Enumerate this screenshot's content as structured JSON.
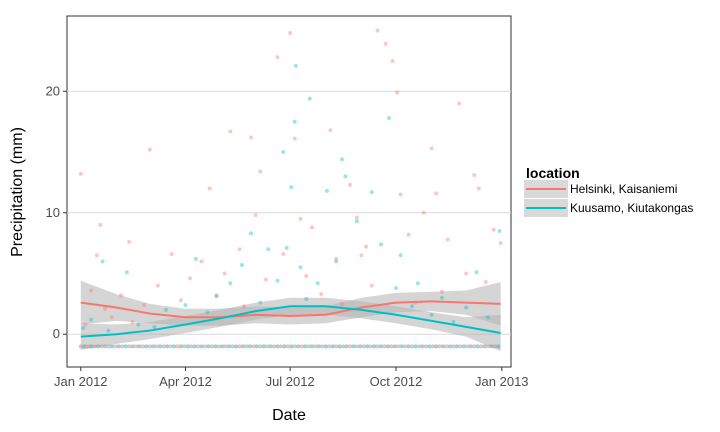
{
  "chart_data": {
    "type": "scatter",
    "xlabel": "Date",
    "ylabel": "Precipitation (mm)",
    "x_ticks": [
      "Jan 2012",
      "Apr 2012",
      "Jul 2012",
      "Oct 2012",
      "Jan 2013"
    ],
    "x_range": [
      "2011-12-20",
      "2013-01-09"
    ],
    "y_ticks": [
      0,
      10,
      20
    ],
    "y_range": [
      -2.7,
      26.2
    ],
    "grid": true,
    "legend": {
      "title": "location",
      "placement": "right",
      "entries": [
        "Helsinki, Kaisaniemi",
        "Kuusamo, Kiutakongas"
      ]
    },
    "colors": {
      "helsinki": "#F8766D",
      "kuusamo": "#00BFC4",
      "ribbon": "#b3b3b3"
    },
    "series": [
      {
        "name": "Helsinki, Kaisaniemi",
        "color": "#F8766D",
        "smooth_x": [
          "2012-01-01",
          "2012-02-01",
          "2012-03-01",
          "2012-04-01",
          "2012-05-01",
          "2012-06-01",
          "2012-07-01",
          "2012-08-01",
          "2012-09-01",
          "2012-10-01",
          "2012-11-01",
          "2012-12-01",
          "2012-12-31"
        ],
        "smooth_y": [
          2.6,
          2.2,
          1.7,
          1.4,
          1.4,
          1.6,
          1.5,
          1.6,
          2.2,
          2.6,
          2.7,
          2.6,
          2.5
        ],
        "smooth_lo": [
          0.8,
          1.1,
          0.9,
          0.7,
          0.7,
          0.9,
          0.8,
          0.9,
          1.4,
          1.8,
          1.9,
          1.6,
          0.7
        ],
        "smooth_hi": [
          4.4,
          3.3,
          2.5,
          2.1,
          2.1,
          2.3,
          2.2,
          2.3,
          3.0,
          3.4,
          3.5,
          3.6,
          4.3
        ],
        "points": [
          [
            "2012-01-01",
            13.2
          ],
          [
            "2012-01-05",
            0.8
          ],
          [
            "2012-01-10",
            3.6
          ],
          [
            "2012-01-15",
            6.5
          ],
          [
            "2012-01-18",
            9.0
          ],
          [
            "2012-01-22",
            2.1
          ],
          [
            "2012-01-28",
            1.4
          ],
          [
            "2012-02-05",
            3.2
          ],
          [
            "2012-02-12",
            7.6
          ],
          [
            "2012-02-15",
            1.0
          ],
          [
            "2012-02-25",
            2.4
          ],
          [
            "2012-03-01",
            15.2
          ],
          [
            "2012-03-08",
            4.0
          ],
          [
            "2012-03-20",
            6.6
          ],
          [
            "2012-03-28",
            2.8
          ],
          [
            "2012-04-05",
            4.6
          ],
          [
            "2012-04-15",
            6.0
          ],
          [
            "2012-04-22",
            12.0
          ],
          [
            "2012-04-28",
            3.1
          ],
          [
            "2012-05-05",
            5.0
          ],
          [
            "2012-05-10",
            16.7
          ],
          [
            "2012-05-18",
            7.0
          ],
          [
            "2012-05-22",
            2.3
          ],
          [
            "2012-05-28",
            16.2
          ],
          [
            "2012-06-01",
            9.8
          ],
          [
            "2012-06-05",
            13.4
          ],
          [
            "2012-06-10",
            4.5
          ],
          [
            "2012-06-20",
            22.8
          ],
          [
            "2012-06-25",
            6.6
          ],
          [
            "2012-07-01",
            24.8
          ],
          [
            "2012-07-05",
            16.1
          ],
          [
            "2012-07-10",
            9.5
          ],
          [
            "2012-07-15",
            4.8
          ],
          [
            "2012-07-20",
            8.8
          ],
          [
            "2012-07-28",
            3.3
          ],
          [
            "2012-08-05",
            16.8
          ],
          [
            "2012-08-10",
            6.2
          ],
          [
            "2012-08-15",
            2.5
          ],
          [
            "2012-08-22",
            12.3
          ],
          [
            "2012-08-28",
            9.6
          ],
          [
            "2012-09-01",
            6.5
          ],
          [
            "2012-09-05",
            7.2
          ],
          [
            "2012-09-10",
            4.0
          ],
          [
            "2012-09-15",
            25.0
          ],
          [
            "2012-09-22",
            23.9
          ],
          [
            "2012-09-28",
            22.5
          ],
          [
            "2012-10-02",
            19.9
          ],
          [
            "2012-10-05",
            11.5
          ],
          [
            "2012-10-12",
            8.2
          ],
          [
            "2012-10-18",
            2.6
          ],
          [
            "2012-10-25",
            10.0
          ],
          [
            "2012-11-01",
            15.3
          ],
          [
            "2012-11-05",
            11.6
          ],
          [
            "2012-11-10",
            3.5
          ],
          [
            "2012-11-15",
            7.8
          ],
          [
            "2012-11-25",
            19.0
          ],
          [
            "2012-12-01",
            5.0
          ],
          [
            "2012-12-08",
            13.1
          ],
          [
            "2012-12-12",
            12.0
          ],
          [
            "2012-12-18",
            4.3
          ],
          [
            "2012-12-25",
            8.6
          ],
          [
            "2012-12-31",
            7.5
          ]
        ]
      },
      {
        "name": "Kuusamo, Kiutakongas",
        "color": "#00BFC4",
        "smooth_x": [
          "2012-01-01",
          "2012-02-01",
          "2012-03-01",
          "2012-04-01",
          "2012-05-01",
          "2012-06-01",
          "2012-07-01",
          "2012-08-01",
          "2012-09-01",
          "2012-10-01",
          "2012-11-01",
          "2012-12-01",
          "2012-12-31"
        ],
        "smooth_y": [
          -0.2,
          0.0,
          0.3,
          0.8,
          1.3,
          1.9,
          2.3,
          2.3,
          2.0,
          1.6,
          1.1,
          0.6,
          0.1
        ],
        "smooth_lo": [
          -1.3,
          -0.8,
          -0.4,
          0.1,
          0.6,
          1.2,
          1.6,
          1.6,
          1.3,
          0.9,
          0.4,
          -0.2,
          -1.4
        ],
        "smooth_hi": [
          0.9,
          0.8,
          1.0,
          1.5,
          2.0,
          2.6,
          3.0,
          3.0,
          2.7,
          2.3,
          1.8,
          1.4,
          1.6
        ],
        "points": [
          [
            "2012-01-03",
            0.5
          ],
          [
            "2012-01-10",
            1.2
          ],
          [
            "2012-01-20",
            6.0
          ],
          [
            "2012-01-25",
            0.3
          ],
          [
            "2012-02-10",
            5.1
          ],
          [
            "2012-02-20",
            0.8
          ],
          [
            "2012-03-05",
            0.6
          ],
          [
            "2012-03-15",
            2.0
          ],
          [
            "2012-04-01",
            2.4
          ],
          [
            "2012-04-10",
            6.2
          ],
          [
            "2012-04-20",
            1.8
          ],
          [
            "2012-04-28",
            3.2
          ],
          [
            "2012-05-10",
            4.2
          ],
          [
            "2012-05-20",
            5.7
          ],
          [
            "2012-05-28",
            8.3
          ],
          [
            "2012-06-05",
            2.6
          ],
          [
            "2012-06-12",
            7.0
          ],
          [
            "2012-06-20",
            4.4
          ],
          [
            "2012-06-25",
            15.0
          ],
          [
            "2012-06-28",
            7.1
          ],
          [
            "2012-07-02",
            12.1
          ],
          [
            "2012-07-05",
            17.5
          ],
          [
            "2012-07-06",
            22.1
          ],
          [
            "2012-07-10",
            5.5
          ],
          [
            "2012-07-15",
            2.9
          ],
          [
            "2012-07-18",
            19.4
          ],
          [
            "2012-07-25",
            4.2
          ],
          [
            "2012-08-02",
            11.8
          ],
          [
            "2012-08-10",
            6.0
          ],
          [
            "2012-08-15",
            14.4
          ],
          [
            "2012-08-18",
            13.0
          ],
          [
            "2012-08-28",
            9.3
          ],
          [
            "2012-09-10",
            11.7
          ],
          [
            "2012-09-18",
            7.4
          ],
          [
            "2012-09-25",
            17.8
          ],
          [
            "2012-10-01",
            3.8
          ],
          [
            "2012-10-05",
            6.5
          ],
          [
            "2012-10-15",
            2.3
          ],
          [
            "2012-10-20",
            4.2
          ],
          [
            "2012-11-01",
            1.6
          ],
          [
            "2012-11-10",
            3.0
          ],
          [
            "2012-11-20",
            1.0
          ],
          [
            "2012-12-01",
            2.2
          ],
          [
            "2012-12-10",
            5.1
          ],
          [
            "2012-12-20",
            1.4
          ],
          [
            "2012-12-30",
            8.5
          ]
        ]
      }
    ],
    "zero_baseline_y": -1.0
  }
}
